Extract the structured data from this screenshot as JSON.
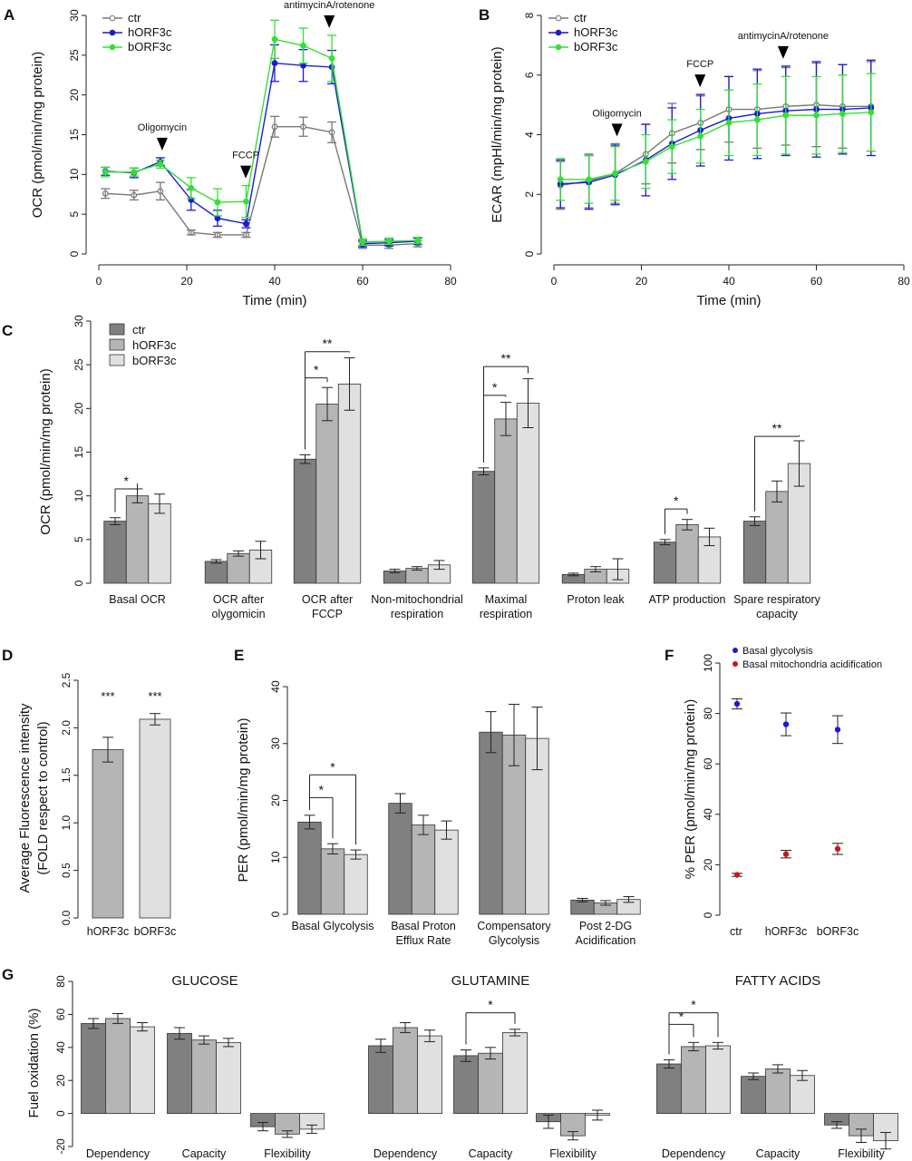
{
  "figure": {
    "colors": {
      "ctr_line": "#777777",
      "h_line": "#1a1ad6",
      "b_line": "#33e033",
      "ctr_bar": "#808080",
      "h_bar": "#b5b5b5",
      "b_bar": "#e0e0e0",
      "red_dot": "#d01515"
    },
    "legend_ctr": "ctr",
    "legend_h": "hORF3c",
    "legend_b": "bORF3c"
  },
  "chart_data": [
    {
      "id": "A",
      "type": "line",
      "panel_letter": "A",
      "xlabel": "Time (min)",
      "ylabel": "OCR (pmol/min/mg protein)",
      "xlim": [
        0,
        80
      ],
      "ylim": [
        0,
        30
      ],
      "xticks": [
        "0",
        "20",
        "40",
        "60",
        "80"
      ],
      "yticks": [
        "0",
        "5",
        "10",
        "15",
        "20",
        "25",
        "30"
      ],
      "x": [
        1.5,
        8,
        14,
        21,
        27,
        33.5,
        40,
        46.5,
        53,
        60,
        66,
        72.5
      ],
      "series": [
        {
          "name": "ctr",
          "values": [
            7.6,
            7.4,
            7.9,
            2.7,
            2.4,
            2.4,
            16.0,
            16.0,
            15.3,
            1.1,
            1.1,
            1.3
          ],
          "err": [
            0.6,
            0.6,
            1.1,
            0.3,
            0.3,
            0.3,
            1.3,
            1.2,
            1.3,
            0.4,
            0.4,
            0.4
          ]
        },
        {
          "name": "hORF3c",
          "values": [
            10.4,
            10.2,
            11.6,
            6.8,
            4.5,
            3.8,
            24.0,
            23.7,
            23.5,
            1.3,
            1.4,
            1.6
          ],
          "err": [
            0.5,
            0.6,
            0.5,
            1.3,
            1.0,
            0.5,
            2.3,
            2.0,
            2.1,
            0.4,
            0.4,
            0.4
          ]
        },
        {
          "name": "bORF3c",
          "values": [
            10.3,
            10.3,
            11.3,
            8.3,
            6.5,
            6.6,
            27.0,
            26.2,
            24.6,
            1.5,
            1.6,
            1.7
          ],
          "err": [
            0.6,
            0.5,
            0.5,
            1.3,
            1.7,
            2.0,
            2.4,
            2.2,
            2.9,
            0.4,
            0.4,
            0.4
          ]
        }
      ],
      "annotations": [
        {
          "text": "Oligomycin",
          "x": 14
        },
        {
          "text": "FCCP",
          "x": 33
        },
        {
          "text": "antimycinA/rotenone",
          "x": 52
        }
      ]
    },
    {
      "id": "B",
      "type": "line",
      "panel_letter": "B",
      "xlabel": "Time (min)",
      "ylabel": "ECAR (mpHl/min/mg protein)",
      "xlim": [
        0,
        80
      ],
      "ylim": [
        0,
        8
      ],
      "xticks": [
        "0",
        "20",
        "40",
        "60",
        "80"
      ],
      "yticks": [
        "0",
        "2",
        "4",
        "6",
        "8"
      ],
      "x": [
        1.5,
        8,
        14,
        21,
        27,
        33.5,
        40,
        46.5,
        53,
        60,
        66,
        72.5
      ],
      "series": [
        {
          "name": "ctr",
          "values": [
            2.3,
            2.45,
            2.7,
            3.35,
            4.05,
            4.4,
            4.85,
            4.85,
            4.95,
            5.0,
            4.95,
            4.95
          ],
          "err": [
            0.8,
            0.9,
            1.0,
            1.0,
            1.0,
            0.9,
            1.1,
            1.3,
            1.3,
            1.4,
            1.4,
            1.5
          ]
        },
        {
          "name": "hORF3c",
          "values": [
            2.35,
            2.4,
            2.65,
            3.15,
            3.7,
            4.15,
            4.55,
            4.7,
            4.8,
            4.85,
            4.85,
            4.9
          ],
          "err": [
            0.8,
            0.9,
            1.0,
            1.2,
            1.2,
            1.2,
            1.4,
            1.5,
            1.5,
            1.6,
            1.5,
            1.6
          ]
        },
        {
          "name": "bORF3c",
          "values": [
            2.5,
            2.5,
            2.7,
            3.1,
            3.6,
            3.95,
            4.4,
            4.5,
            4.65,
            4.65,
            4.7,
            4.75
          ],
          "err": [
            0.7,
            0.8,
            0.9,
            0.9,
            0.9,
            0.9,
            1.1,
            1.2,
            1.3,
            1.3,
            1.3,
            1.3
          ]
        }
      ],
      "annotations": [
        {
          "text": "Oligomycin",
          "x": 14
        },
        {
          "text": "FCCP",
          "x": 33
        },
        {
          "text": "antimycinA/rotenone",
          "x": 52
        }
      ]
    },
    {
      "id": "C",
      "type": "bar",
      "panel_letter": "C",
      "ylabel": "OCR (pmol/min/mg protein)",
      "ylim": [
        0,
        30
      ],
      "yticks": [
        "0",
        "5",
        "10",
        "15",
        "20",
        "25",
        "30"
      ],
      "categories": [
        [
          "Basal OCR"
        ],
        [
          "OCR after",
          "olygomicin"
        ],
        [
          "OCR after",
          "FCCP"
        ],
        [
          "Non-mitochondrial",
          "respiration"
        ],
        [
          "Maximal",
          "respiration"
        ],
        [
          "Proton leak"
        ],
        [
          "ATP production"
        ],
        [
          "Spare respiratory",
          "capacity"
        ]
      ],
      "series": [
        {
          "name": "ctr",
          "values": [
            7.1,
            2.5,
            14.2,
            1.4,
            12.8,
            1.0,
            4.7,
            7.1
          ],
          "err": [
            0.4,
            0.2,
            0.5,
            0.2,
            0.4,
            0.15,
            0.3,
            0.5
          ]
        },
        {
          "name": "hORF3c",
          "values": [
            10.0,
            3.4,
            20.5,
            1.7,
            18.8,
            1.6,
            6.7,
            10.5
          ],
          "err": [
            0.8,
            0.3,
            1.9,
            0.2,
            1.9,
            0.3,
            0.6,
            1.2
          ]
        },
        {
          "name": "bORF3c",
          "values": [
            9.1,
            3.8,
            22.8,
            2.1,
            20.6,
            1.6,
            5.3,
            13.7
          ],
          "err": [
            1.1,
            1.0,
            3.0,
            0.5,
            2.8,
            1.2,
            1.0,
            2.6
          ]
        }
      ],
      "significance": [
        {
          "cat": 0,
          "from": 0,
          "to": 1,
          "label": "*",
          "y": 10.8
        },
        {
          "cat": 2,
          "from": 0,
          "to": 1,
          "label": "*",
          "y": 23.5
        },
        {
          "cat": 2,
          "from": 0,
          "to": 2,
          "label": "**",
          "y": 26.5
        },
        {
          "cat": 4,
          "from": 0,
          "to": 1,
          "label": "*",
          "y": 21.5
        },
        {
          "cat": 4,
          "from": 0,
          "to": 2,
          "label": "**",
          "y": 24.8
        },
        {
          "cat": 6,
          "from": 0,
          "to": 1,
          "label": "*",
          "y": 8.5
        },
        {
          "cat": 7,
          "from": 0,
          "to": 2,
          "label": "**",
          "y": 16.8
        }
      ]
    },
    {
      "id": "D",
      "type": "bar",
      "panel_letter": "D",
      "ylabel": [
        "Average Fluorescence intensity",
        "(FOLD respect to control)"
      ],
      "ylim": [
        0,
        2.5
      ],
      "yticks": [
        "0.0",
        "0.5",
        "1.0",
        "1.5",
        "2.0",
        "2.5"
      ],
      "categories": [
        "hORF3c",
        "bORF3c"
      ],
      "values": [
        1.77,
        2.09
      ],
      "err": [
        0.13,
        0.06
      ],
      "stars": [
        "***",
        "***"
      ]
    },
    {
      "id": "E",
      "type": "bar",
      "panel_letter": "E",
      "ylabel": "PER (pmol/min/mg protein)",
      "ylim": [
        0,
        40
      ],
      "yticks": [
        "0",
        "10",
        "20",
        "30",
        "40"
      ],
      "categories": [
        [
          "Basal Glycolysis"
        ],
        [
          "Basal Proton",
          "Efflux Rate"
        ],
        [
          "Compensatory",
          "Glycolysis"
        ],
        [
          "Post 2-DG",
          "Acidification"
        ]
      ],
      "series": [
        {
          "name": "ctr",
          "values": [
            16.2,
            19.5,
            32.0,
            2.5
          ],
          "err": [
            1.2,
            1.7,
            3.6,
            0.3
          ]
        },
        {
          "name": "hORF3c",
          "values": [
            11.5,
            15.7,
            31.5,
            2.0
          ],
          "err": [
            0.9,
            1.7,
            5.4,
            0.4
          ]
        },
        {
          "name": "bORF3c",
          "values": [
            10.5,
            14.8,
            30.9,
            2.6
          ],
          "err": [
            0.8,
            1.6,
            5.5,
            0.5
          ]
        }
      ],
      "significance": [
        {
          "cat": 0,
          "from": 0,
          "to": 1,
          "label": "*",
          "y": 20.5
        },
        {
          "cat": 0,
          "from": 0,
          "to": 2,
          "label": "*",
          "y": 24.5
        }
      ]
    },
    {
      "id": "F",
      "type": "scatter",
      "panel_letter": "F",
      "ylabel": "% PER (pmol/min/mg protein)",
      "ylim": [
        0,
        100
      ],
      "yticks": [
        "0",
        "20",
        "40",
        "60",
        "80",
        "100"
      ],
      "categories": [
        "ctr",
        "hORF3c",
        "bORF3c"
      ],
      "series": [
        {
          "name": "Basal glycolysis",
          "values": [
            83.8,
            75.7,
            73.6
          ],
          "err": [
            2.0,
            4.5,
            5.5
          ]
        },
        {
          "name": "Basal mitochondria acidification",
          "values": [
            16.0,
            24.2,
            26.3
          ],
          "err": [
            0.6,
            1.5,
            2.2
          ]
        }
      ]
    },
    {
      "id": "G",
      "type": "bar",
      "panel_letter": "G",
      "ylabel": "Fuel oxidation (%)",
      "ylim": [
        -20,
        80
      ],
      "yticks": [
        "-20",
        "0",
        "20",
        "40",
        "60",
        "80"
      ],
      "groups": [
        {
          "title": "GLUCOSE",
          "categories": [
            "Dependency",
            "Capacity",
            "Flexibility"
          ],
          "series": [
            {
              "name": "ctr",
              "values": [
                54.5,
                48.5,
                -8.0
              ],
              "err": [
                3.0,
                3.5,
                2.5
              ]
            },
            {
              "name": "hORF3c",
              "values": [
                57.5,
                44.5,
                -12.5
              ],
              "err": [
                3.0,
                2.5,
                2.0
              ]
            },
            {
              "name": "bORF3c",
              "values": [
                52.5,
                43.0,
                -9.5
              ],
              "err": [
                2.5,
                2.5,
                2.5
              ]
            }
          ],
          "significance": []
        },
        {
          "title": "GLUTAMINE",
          "categories": [
            "Dependency",
            "Capacity",
            "Flexibility"
          ],
          "series": [
            {
              "name": "ctr",
              "values": [
                41.0,
                35.0,
                -5.0
              ],
              "err": [
                4.0,
                3.5,
                4.0
              ]
            },
            {
              "name": "hORF3c",
              "values": [
                52.0,
                36.5,
                -13.5
              ],
              "err": [
                3.0,
                3.5,
                2.5
              ]
            },
            {
              "name": "bORF3c",
              "values": [
                47.0,
                49.0,
                -1.0
              ],
              "err": [
                3.5,
                2.0,
                3.0
              ]
            }
          ],
          "significance": [
            {
              "cat": 1,
              "from": 0,
              "to": 2,
              "label": "*",
              "y": 61
            }
          ]
        },
        {
          "title": "FATTY ACIDS",
          "categories": [
            "Dependency",
            "Capacity",
            "Flexibility"
          ],
          "series": [
            {
              "name": "ctr",
              "values": [
                30.0,
                22.5,
                -7.0
              ],
              "err": [
                2.5,
                2.0,
                2.0
              ]
            },
            {
              "name": "hORF3c",
              "values": [
                40.5,
                27.0,
                -13.5
              ],
              "err": [
                2.5,
                2.5,
                4.0
              ]
            },
            {
              "name": "bORF3c",
              "values": [
                41.0,
                23.0,
                -16.5
              ],
              "err": [
                2.0,
                3.0,
                5.0
              ]
            }
          ],
          "significance": [
            {
              "cat": 0,
              "from": 0,
              "to": 1,
              "label": "*",
              "y": 54
            },
            {
              "cat": 0,
              "from": 0,
              "to": 2,
              "label": "*",
              "y": 61
            }
          ]
        }
      ]
    }
  ]
}
